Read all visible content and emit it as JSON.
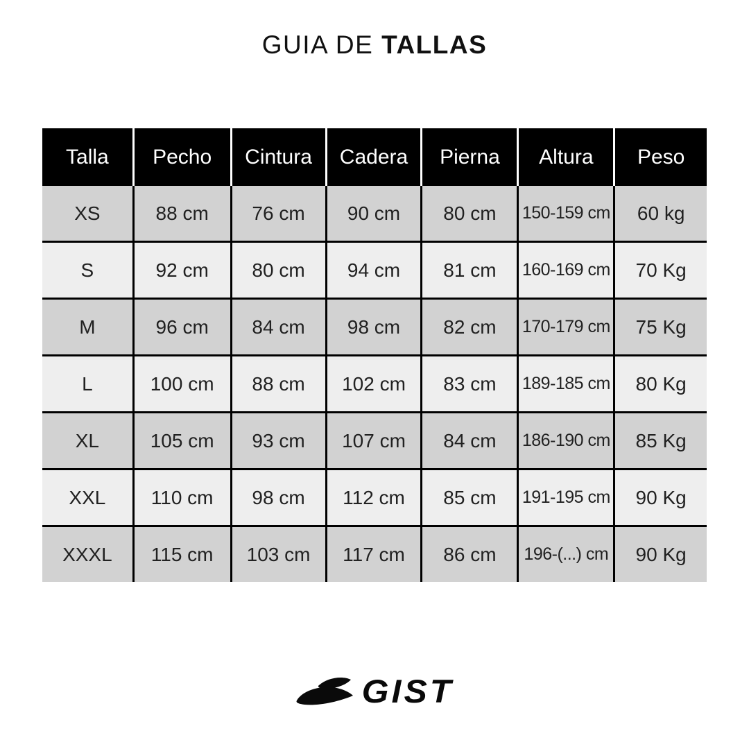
{
  "title": {
    "prefix": "GUIA DE ",
    "bold": "TALLAS"
  },
  "table": {
    "columns": [
      "Talla",
      "Pecho",
      "Cintura",
      "Cadera",
      "Pierna",
      "Altura",
      "Peso"
    ],
    "rows": [
      [
        "XS",
        "88 cm",
        "76 cm",
        "90 cm",
        "80 cm",
        "150-159 cm",
        "60 kg"
      ],
      [
        "S",
        "92 cm",
        "80 cm",
        "94 cm",
        "81 cm",
        "160-169 cm",
        "70 Kg"
      ],
      [
        "M",
        "96 cm",
        "84 cm",
        "98 cm",
        "82 cm",
        "170-179 cm",
        "75 Kg"
      ],
      [
        "L",
        "100 cm",
        "88 cm",
        "102 cm",
        "83 cm",
        "189-185 cm",
        "80 Kg"
      ],
      [
        "XL",
        "105 cm",
        "93 cm",
        "107 cm",
        "84 cm",
        "186-190 cm",
        "85 Kg"
      ],
      [
        "XXL",
        "110 cm",
        "98 cm",
        "112 cm",
        "85 cm",
        "191-195 cm",
        "90 Kg"
      ],
      [
        "XXXL",
        "115 cm",
        "103 cm",
        "117 cm",
        "86 cm",
        "196-(...) cm",
        "90 Kg"
      ]
    ]
  },
  "logo": {
    "brand": "GIST",
    "emblem": "swoosh-icon"
  },
  "colors": {
    "header_bg": "#000000",
    "header_text": "#ffffff",
    "row_odd": "#d2d2d2",
    "row_even": "#eeeeee",
    "text": "#212121"
  }
}
